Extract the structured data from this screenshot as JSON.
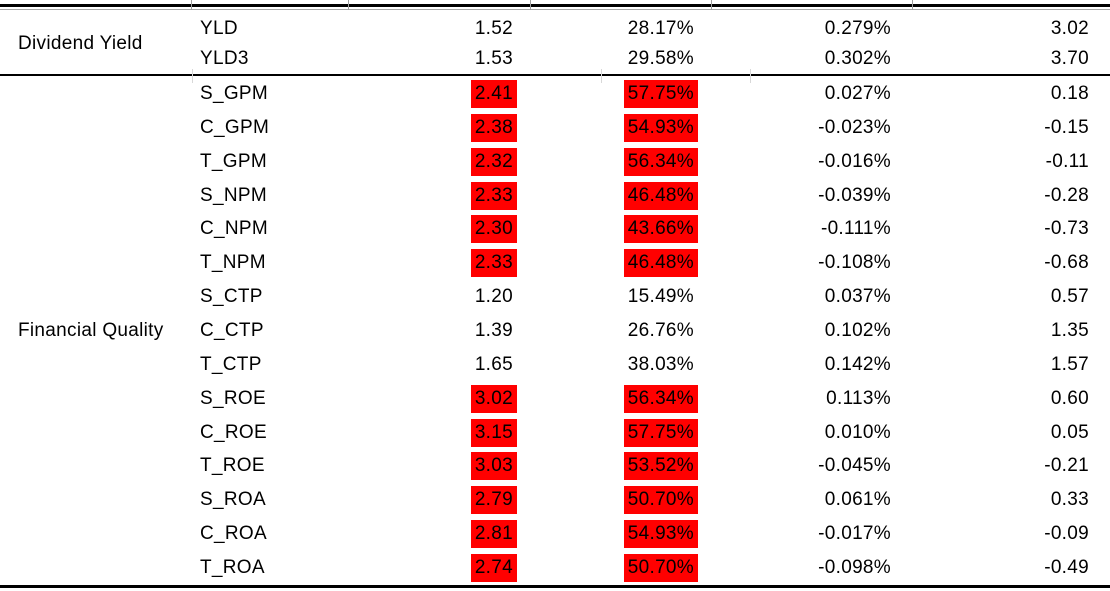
{
  "page": {
    "background": "#ffffff",
    "text_color": "#000000"
  },
  "table": {
    "highlight_color": "#ff0000",
    "rule_color": "#000000",
    "sections": [
      {
        "category": "Dividend Yield",
        "rows": [
          {
            "metric": "YLD",
            "values": [
              "1.52",
              "28.17%",
              "0.279%",
              "3.02"
            ],
            "highlighted": false
          },
          {
            "metric": "YLD3",
            "values": [
              "1.53",
              "29.58%",
              "0.302%",
              "3.70"
            ],
            "highlighted": false
          }
        ]
      },
      {
        "category": "Financial Quality",
        "rows": [
          {
            "metric": "S_GPM",
            "values": [
              "2.41",
              "57.75%",
              "0.027%",
              "0.18"
            ],
            "highlighted": true
          },
          {
            "metric": "C_GPM",
            "values": [
              "2.38",
              "54.93%",
              "-0.023%",
              "-0.15"
            ],
            "highlighted": true
          },
          {
            "metric": "T_GPM",
            "values": [
              "2.32",
              "56.34%",
              "-0.016%",
              "-0.11"
            ],
            "highlighted": true
          },
          {
            "metric": "S_NPM",
            "values": [
              "2.33",
              "46.48%",
              "-0.039%",
              "-0.28"
            ],
            "highlighted": true
          },
          {
            "metric": "C_NPM",
            "values": [
              "2.30",
              "43.66%",
              "-0.111%",
              "-0.73"
            ],
            "highlighted": true
          },
          {
            "metric": "T_NPM",
            "values": [
              "2.33",
              "46.48%",
              "-0.108%",
              "-0.68"
            ],
            "highlighted": true
          },
          {
            "metric": "S_CTP",
            "values": [
              "1.20",
              "15.49%",
              "0.037%",
              "0.57"
            ],
            "highlighted": false
          },
          {
            "metric": "C_CTP",
            "values": [
              "1.39",
              "26.76%",
              "0.102%",
              "1.35"
            ],
            "highlighted": false
          },
          {
            "metric": "T_CTP",
            "values": [
              "1.65",
              "38.03%",
              "0.142%",
              "1.57"
            ],
            "highlighted": false
          },
          {
            "metric": "S_ROE",
            "values": [
              "3.02",
              "56.34%",
              "0.113%",
              "0.60"
            ],
            "highlighted": true
          },
          {
            "metric": "C_ROE",
            "values": [
              "3.15",
              "57.75%",
              "0.010%",
              "0.05"
            ],
            "highlighted": true
          },
          {
            "metric": "T_ROE",
            "values": [
              "3.03",
              "53.52%",
              "-0.045%",
              "-0.21"
            ],
            "highlighted": true
          },
          {
            "metric": "S_ROA",
            "values": [
              "2.79",
              "50.70%",
              "0.061%",
              "0.33"
            ],
            "highlighted": true
          },
          {
            "metric": "C_ROA",
            "values": [
              "2.81",
              "54.93%",
              "-0.017%",
              "-0.09"
            ],
            "highlighted": true
          },
          {
            "metric": "T_ROA",
            "values": [
              "2.74",
              "50.70%",
              "-0.098%",
              "-0.49"
            ],
            "highlighted": true
          }
        ]
      }
    ]
  }
}
